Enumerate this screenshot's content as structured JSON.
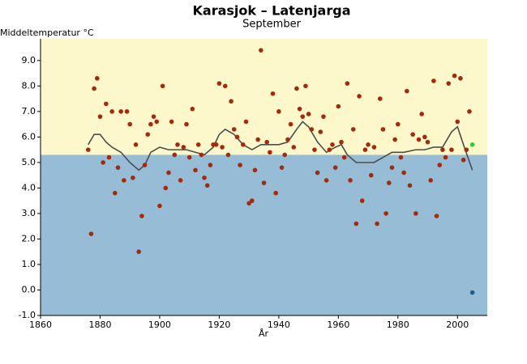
{
  "chart_data": {
    "type": "scatter",
    "title": "Karasjok – Latenjarga",
    "subtitle": "September",
    "y_label": "Middeltemperatur °C",
    "x_label": "År",
    "xlim": [
      1860,
      2010
    ],
    "ylim": [
      -1,
      9.85
    ],
    "xticks": [
      1860,
      1880,
      1900,
      1920,
      1940,
      1960,
      1980,
      2000
    ],
    "yticks": [
      {
        "value": -1,
        "label": "-1.0"
      },
      {
        "value": 0,
        "label": "0.0"
      },
      {
        "value": 1,
        "label": "1.0"
      },
      {
        "value": 2,
        "label": "2.0"
      },
      {
        "value": 3,
        "label": "3.0"
      },
      {
        "value": 4,
        "label": "4.0"
      },
      {
        "value": 5,
        "label": "5.0"
      },
      {
        "value": 6,
        "label": "6.0"
      },
      {
        "value": 7,
        "label": "7.0"
      },
      {
        "value": 8,
        "label": "8.0"
      },
      {
        "value": 9,
        "label": "9.0"
      }
    ],
    "reference_value": 5.3,
    "above_color": "#fcf8cc",
    "below_color": "#97bcd6",
    "series": [
      {
        "color": "#a32a0c",
        "x": [
          1876,
          1877,
          1878,
          1879,
          1880,
          1881,
          1882,
          1883,
          1884,
          1885,
          1886,
          1887,
          1888,
          1889,
          1890,
          1891,
          1892,
          1893,
          1894,
          1895,
          1896,
          1897,
          1898,
          1899,
          1900,
          1901,
          1902,
          1903,
          1904,
          1905,
          1906,
          1907,
          1908,
          1909,
          1910,
          1911,
          1912,
          1913,
          1914,
          1915,
          1916,
          1917,
          1918,
          1919,
          1920,
          1921,
          1922,
          1923,
          1924,
          1925,
          1926,
          1927,
          1928,
          1929,
          1930,
          1931,
          1932,
          1933,
          1934,
          1935,
          1936,
          1937,
          1938,
          1939,
          1940,
          1941,
          1942,
          1943,
          1944,
          1945,
          1946,
          1947,
          1948,
          1949,
          1950,
          1951,
          1952,
          1953,
          1954,
          1955,
          1956,
          1957,
          1958,
          1959,
          1960,
          1961,
          1962,
          1963,
          1964,
          1965,
          1966,
          1967,
          1968,
          1969,
          1970,
          1971,
          1972,
          1973,
          1974,
          1975,
          1976,
          1977,
          1978,
          1979,
          1980,
          1981,
          1982,
          1983,
          1984,
          1985,
          1986,
          1987,
          1988,
          1989,
          1990,
          1991,
          1992,
          1993,
          1994,
          1995,
          1996,
          1997,
          1998,
          1999,
          2000,
          2001,
          2002,
          2003,
          2004
        ],
        "values": [
          5.5,
          2.2,
          7.9,
          8.3,
          6.8,
          5.0,
          7.3,
          5.2,
          7.0,
          3.8,
          4.8,
          7.0,
          4.3,
          7.0,
          6.5,
          4.4,
          5.7,
          1.5,
          2.9,
          4.9,
          6.1,
          6.5,
          6.8,
          6.6,
          3.3,
          8.0,
          4.0,
          4.6,
          6.6,
          5.3,
          5.7,
          4.3,
          5.6,
          6.5,
          5.2,
          7.1,
          4.7,
          5.7,
          5.3,
          4.4,
          4.1,
          4.9,
          5.7,
          5.7,
          8.1,
          5.6,
          8.0,
          5.3,
          7.4,
          6.3,
          6.0,
          4.9,
          5.7,
          6.6,
          3.4,
          3.5,
          4.7,
          5.9,
          9.4,
          4.2,
          5.8,
          5.4,
          7.7,
          3.8,
          7.0,
          4.8,
          5.3,
          5.9,
          6.5,
          5.6,
          7.9,
          7.1,
          6.8,
          8.0,
          6.9,
          6.3,
          5.5,
          4.6,
          6.2,
          6.8,
          4.3,
          5.5,
          5.7,
          4.8,
          7.2,
          5.8,
          5.2,
          8.1,
          4.3,
          6.3,
          2.6,
          7.6,
          3.5,
          5.5,
          5.7,
          4.5,
          5.6,
          2.6,
          7.5,
          6.3,
          3.0,
          4.2,
          4.8,
          5.9,
          6.5,
          5.2,
          4.6,
          7.8,
          4.1,
          6.1,
          3.0,
          5.9,
          6.9,
          6.0,
          5.8,
          4.3,
          8.2,
          2.9,
          4.9,
          5.5,
          5.2,
          8.1,
          5.5,
          8.4,
          6.6,
          8.3,
          5.1,
          5.5,
          7.0
        ]
      },
      {
        "color": "#2ecc2e",
        "x": [
          2005
        ],
        "values": [
          5.7
        ]
      },
      {
        "color": "#1f5f8b",
        "x": [
          2005
        ],
        "values": [
          -0.1
        ]
      }
    ],
    "trend": {
      "color": "#4d4d4d",
      "x": [
        1876,
        1878,
        1880,
        1882,
        1884,
        1887,
        1890,
        1893,
        1895,
        1897,
        1900,
        1903,
        1906,
        1909,
        1912,
        1915,
        1918,
        1920,
        1922,
        1925,
        1928,
        1931,
        1934,
        1937,
        1940,
        1943,
        1946,
        1948,
        1950,
        1953,
        1956,
        1959,
        1961,
        1963,
        1966,
        1969,
        1972,
        1975,
        1978,
        1982,
        1986,
        1989,
        1992,
        1995,
        1998,
        2000,
        2002,
        2005
      ],
      "values": [
        5.7,
        6.1,
        6.1,
        5.8,
        5.6,
        5.4,
        5.0,
        4.7,
        4.9,
        5.4,
        5.6,
        5.5,
        5.5,
        5.5,
        5.4,
        5.3,
        5.6,
        6.1,
        6.3,
        6.1,
        5.7,
        5.5,
        5.7,
        5.7,
        5.7,
        5.8,
        6.3,
        6.6,
        6.4,
        5.8,
        5.4,
        5.6,
        5.7,
        5.3,
        5.0,
        5.0,
        5.0,
        5.2,
        5.4,
        5.4,
        5.5,
        5.5,
        5.6,
        5.6,
        6.2,
        6.4,
        5.7,
        4.7
      ]
    }
  }
}
